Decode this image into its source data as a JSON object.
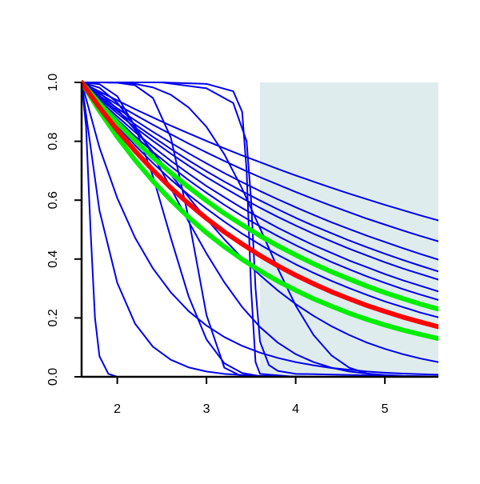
{
  "chart_data": {
    "type": "line",
    "x": [
      1.6,
      1.8,
      2.0,
      2.2,
      2.4,
      2.6,
      2.8,
      3.0,
      3.2,
      3.4,
      3.6,
      3.8,
      4.0,
      4.2,
      4.4,
      4.6,
      4.8,
      5.0,
      5.2,
      5.4,
      5.6
    ],
    "xlim": [
      1.6,
      5.6
    ],
    "ylim": [
      0,
      1
    ],
    "xticks": [
      2,
      3,
      4,
      5
    ],
    "yticks": [
      {
        "value": 0,
        "label": "0.0"
      },
      0.2,
      0.4,
      0.6,
      0.8,
      {
        "value": 1,
        "label": "1.0"
      }
    ],
    "shaded_region": {
      "xlim": [
        3.6,
        5.6
      ],
      "color": "#dfeced"
    },
    "series": [
      {
        "color": "#0000ee",
        "width": 2,
        "values": [
          1,
          0.969,
          0.939,
          0.909,
          0.881,
          0.853,
          0.827,
          0.801,
          0.776,
          0.752,
          0.729,
          0.706,
          0.684,
          0.663,
          0.642,
          0.622,
          0.603,
          0.584,
          0.566,
          0.548,
          0.531
        ]
      },
      {
        "color": "#0000ee",
        "width": 2,
        "values": [
          1,
          0.962,
          0.925,
          0.89,
          0.856,
          0.824,
          0.792,
          0.762,
          0.733,
          0.705,
          0.678,
          0.653,
          0.628,
          0.604,
          0.581,
          0.559,
          0.537,
          0.517,
          0.497,
          0.478,
          0.46
        ]
      },
      {
        "color": "#0000ee",
        "width": 2,
        "values": [
          1,
          0.955,
          0.912,
          0.871,
          0.832,
          0.795,
          0.759,
          0.725,
          0.692,
          0.661,
          0.631,
          0.603,
          0.576,
          0.55,
          0.525,
          0.502,
          0.479,
          0.458,
          0.437,
          0.417,
          0.398
        ]
      },
      {
        "color": "#0000ee",
        "width": 2,
        "values": [
          1,
          0.95,
          0.903,
          0.857,
          0.815,
          0.774,
          0.735,
          0.698,
          0.663,
          0.63,
          0.599,
          0.569,
          0.54,
          0.513,
          0.488,
          0.463,
          0.44,
          0.418,
          0.397,
          0.377,
          0.358
        ]
      },
      {
        "color": "#0000ee",
        "width": 2,
        "values": [
          1,
          0.946,
          0.895,
          0.847,
          0.801,
          0.758,
          0.717,
          0.678,
          0.642,
          0.607,
          0.574,
          0.543,
          0.514,
          0.486,
          0.46,
          0.435,
          0.412,
          0.389,
          0.368,
          0.349,
          0.33
        ]
      },
      {
        "color": "#0000ee",
        "width": 2,
        "values": [
          1,
          0.94,
          0.884,
          0.831,
          0.781,
          0.734,
          0.69,
          0.648,
          0.61,
          0.573,
          0.539,
          0.506,
          0.476,
          0.447,
          0.421,
          0.395,
          0.372,
          0.349,
          0.328,
          0.309,
          0.29
        ]
      },
      {
        "color": "#0000ee",
        "width": 2,
        "values": [
          1,
          0.935,
          0.874,
          0.817,
          0.764,
          0.715,
          0.668,
          0.625,
          0.584,
          0.546,
          0.511,
          0.478,
          0.447,
          0.418,
          0.39,
          0.365,
          0.341,
          0.319,
          0.298,
          0.279,
          0.261
        ]
      },
      {
        "color": "#0000ee",
        "width": 2,
        "values": [
          1,
          0.923,
          0.852,
          0.786,
          0.726,
          0.67,
          0.618,
          0.571,
          0.527,
          0.486,
          0.449,
          0.414,
          0.382,
          0.353,
          0.326,
          0.301,
          0.278,
          0.256,
          0.237,
          0.218,
          0.202
        ]
      },
      {
        "color": "#0000ee",
        "width": 2,
        "values": [
          1,
          0.967,
          0.909,
          0.839,
          0.764,
          0.687,
          0.61,
          0.536,
          0.467,
          0.403,
          0.345,
          0.293,
          0.247,
          0.207,
          0.172,
          0.142,
          0.116,
          0.095,
          0.077,
          0.062,
          0.05
        ]
      },
      {
        "color": "#0000ee",
        "width": 2,
        "values": [
          1,
          0.982,
          0.931,
          0.852,
          0.753,
          0.641,
          0.527,
          0.419,
          0.321,
          0.237,
          0.169,
          0.116,
          0.077,
          0.05,
          0.031,
          0.018,
          0.011,
          0.006,
          0.003,
          0.002,
          0.001
        ]
      },
      {
        "color": "#0000ee",
        "width": 2,
        "values": [
          1,
          0.565,
          0.319,
          0.18,
          0.102,
          0.058,
          0.032,
          0.018,
          0.01,
          0.006,
          0.003,
          0.002,
          0.001,
          0,
          0,
          0,
          0,
          0,
          0,
          0,
          0
        ]
      },
      {
        "color": "#0000ee",
        "width": 2,
        "values": [
          1,
          0.779,
          0.607,
          0.472,
          0.368,
          0.287,
          0.223,
          0.174,
          0.135,
          0.105,
          0.082,
          0.064,
          0.05,
          0.039,
          0.03,
          0.024,
          0.018,
          0.014,
          0.011,
          0.009,
          0.007
        ]
      },
      {
        "color": "#0000ee",
        "width": 2,
        "values": [
          1,
          0.994,
          0.953,
          0.85,
          0.681,
          0.472,
          0.273,
          0.127,
          0.046,
          0.013,
          0.002,
          0,
          0,
          0,
          0,
          0,
          0,
          0,
          0,
          0,
          0
        ]
      },
      {
        "color": "#0000ee",
        "width": 2,
        "values": [
          1,
          1,
          0.999,
          0.995,
          0.983,
          0.958,
          0.915,
          0.849,
          0.756,
          0.639,
          0.505,
          0.368,
          0.242,
          0.142,
          0.073,
          0.031,
          0.011,
          0.003,
          0.001,
          0,
          0
        ]
      },
      {
        "color": "#0000ee",
        "width": 2,
        "values": [
          1,
          1,
          0.999,
          0.99,
          0.947,
          0.813,
          0.539,
          0.21,
          0.031,
          0.001,
          0,
          0,
          0,
          0,
          0,
          0,
          0,
          0,
          0,
          0,
          0
        ]
      },
      {
        "color": "#0000ee",
        "width": 2,
        "x": [
          1.6,
          2.0,
          2.5,
          3.0,
          3.3,
          3.4,
          3.45,
          3.5,
          3.55,
          3.6,
          4,
          5,
          5.6
        ],
        "values": [
          1,
          1,
          1,
          0.995,
          0.97,
          0.9,
          0.7,
          0.3,
          0.05,
          0.01,
          0,
          0,
          0
        ]
      },
      {
        "color": "#0000ee",
        "width": 2,
        "x": [
          1.6,
          2.5,
          3.0,
          3.3,
          3.45,
          3.5,
          3.55,
          3.6,
          3.7,
          3.8,
          4,
          5.6
        ],
        "values": [
          1,
          1,
          0.98,
          0.93,
          0.8,
          0.6,
          0.3,
          0.12,
          0.04,
          0.02,
          0.01,
          0
        ]
      },
      {
        "color": "#0000ee",
        "width": 2,
        "x": [
          1.6,
          1.65,
          1.7,
          1.75,
          1.8,
          1.9,
          2.0,
          2.1,
          5.6
        ],
        "values": [
          1,
          0.85,
          0.5,
          0.2,
          0.07,
          0.01,
          0,
          0,
          0
        ]
      },
      {
        "color": "#00ee00",
        "width": 6,
        "values": [
          1,
          0.929,
          0.863,
          0.802,
          0.745,
          0.693,
          0.644,
          0.598,
          0.555,
          0.516,
          0.479,
          0.445,
          0.414,
          0.384,
          0.357,
          0.332,
          0.308,
          0.286,
          0.266,
          0.247,
          0.23
        ]
      },
      {
        "color": "#00ee00",
        "width": 6,
        "values": [
          1,
          0.903,
          0.815,
          0.736,
          0.665,
          0.6,
          0.542,
          0.489,
          0.442,
          0.399,
          0.36,
          0.325,
          0.294,
          0.265,
          0.24,
          0.216,
          0.195,
          0.176,
          0.159,
          0.144,
          0.13
        ]
      },
      {
        "color": "#ff0000",
        "width": 6,
        "values": [
          1,
          0.915,
          0.838,
          0.767,
          0.702,
          0.642,
          0.588,
          0.538,
          0.492,
          0.451,
          0.412,
          0.377,
          0.345,
          0.316,
          0.289,
          0.265,
          0.242,
          0.222,
          0.203,
          0.186,
          0.17
        ]
      }
    ]
  }
}
